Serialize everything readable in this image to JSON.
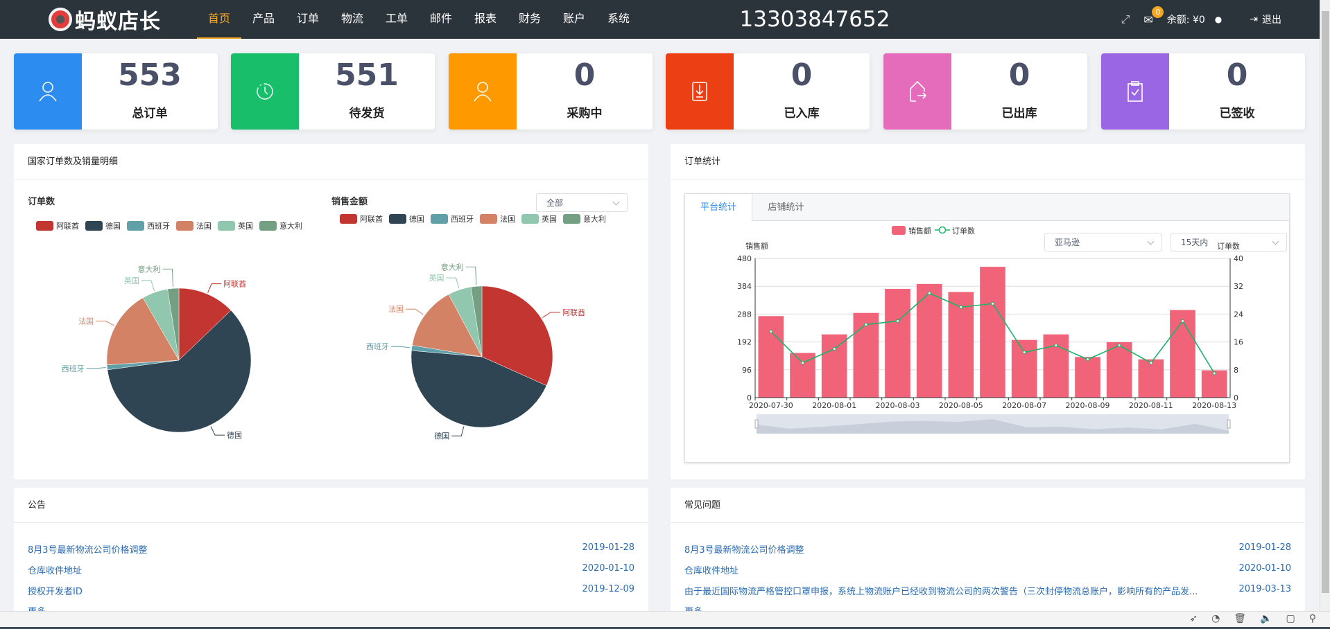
{
  "header": {
    "logo_text": "蚂蚁店长",
    "nav": [
      "首页",
      "产品",
      "订单",
      "物流",
      "工单",
      "邮件",
      "报表",
      "财务",
      "账户",
      "系统"
    ],
    "active_nav": 0,
    "phone": "13303847652",
    "mail_badge": "0",
    "balance": "余额: ¥0",
    "logout": "退出"
  },
  "stats": [
    {
      "value": "553",
      "label": "总订单",
      "color": "#2d8cf0",
      "icon": "user-icon"
    },
    {
      "value": "551",
      "label": "待发货",
      "color": "#19be6b",
      "icon": "clock-icon"
    },
    {
      "value": "0",
      "label": "采购中",
      "color": "#ff9900",
      "icon": "user-icon"
    },
    {
      "value": "0",
      "label": "已入库",
      "color": "#ed3f14",
      "icon": "download-icon"
    },
    {
      "value": "0",
      "label": "已出库",
      "color": "#e46cbb",
      "icon": "export-icon"
    },
    {
      "value": "0",
      "label": "已签收",
      "color": "#9a66e4",
      "icon": "clipboard-check-icon"
    }
  ],
  "country_panel": {
    "title": "国家订单数及销量明细",
    "filter": "全部"
  },
  "order_panel": {
    "title": "订单统计",
    "tabs": [
      "平台统计",
      "店铺统计"
    ],
    "active_tab": 0,
    "platform": "亚马逊",
    "range": "15天内"
  },
  "chart_data": [
    {
      "type": "pie",
      "title": "订单数",
      "categories": [
        "阿联酋",
        "德国",
        "西班牙",
        "法国",
        "英国",
        "意大利"
      ],
      "values": [
        71,
        332,
        6,
        98,
        32,
        14
      ],
      "colors": [
        "#c23531",
        "#2f4554",
        "#61a0a8",
        "#d48265",
        "#91c7ae",
        "#749f83"
      ],
      "legend": "top"
    },
    {
      "type": "pie",
      "title": "销售金额",
      "categories": [
        "阿联酋",
        "德国",
        "西班牙",
        "法国",
        "英国",
        "意大利"
      ],
      "values": [
        31.7,
        44.7,
        1.2,
        14.6,
        5.3,
        2.5
      ],
      "colors": [
        "#c23531",
        "#2f4554",
        "#61a0a8",
        "#d48265",
        "#91c7ae",
        "#749f83"
      ],
      "legend": "top"
    },
    {
      "type": "bar",
      "x": [
        "2020-07-30",
        "2020-07-31",
        "2020-08-01",
        "2020-08-02",
        "2020-08-03",
        "2020-08-04",
        "2020-08-05",
        "2020-08-06",
        "2020-08-07",
        "2020-08-08",
        "2020-08-09",
        "2020-08-10",
        "2020-08-11",
        "2020-08-12",
        "2020-08-13"
      ],
      "x_tick_labels": [
        "2020-07-30",
        "2020-08-01",
        "2020-08-03",
        "2020-08-05",
        "2020-08-07",
        "2020-08-09",
        "2020-08-11",
        "2020-08-13"
      ],
      "series": [
        {
          "name": "销售额",
          "type": "bar",
          "axis": "left",
          "color": "#f06378",
          "values": [
            281,
            154,
            218,
            292,
            375,
            392,
            364,
            451,
            199,
            218,
            140,
            191,
            132,
            302,
            94
          ]
        },
        {
          "name": "订单数",
          "type": "line",
          "axis": "right",
          "color": "#1bb56a",
          "values": [
            19,
            10,
            14,
            21,
            22,
            30,
            26,
            27,
            13,
            15,
            11,
            15,
            10,
            22,
            7
          ]
        }
      ],
      "ylabel": "销售额",
      "ylabel_right": "订单数",
      "ylim": [
        0,
        480
      ],
      "ylim_right": [
        0,
        40
      ],
      "yticks": [
        "0",
        "96",
        "192",
        "288",
        "384",
        "480"
      ],
      "yticks_right": [
        "0",
        "8",
        "16",
        "24",
        "32",
        "40"
      ],
      "grid": true,
      "legend": "top-right",
      "datazoom": true
    }
  ],
  "notices": {
    "title": "公告",
    "items": [
      {
        "text": "8月3号最新物流公司价格调整",
        "date": "2019-01-28"
      },
      {
        "text": "仓库收件地址",
        "date": "2020-01-10"
      },
      {
        "text": "授权开发者ID",
        "date": "2019-12-09"
      }
    ],
    "more": "更多"
  },
  "faq": {
    "title": "常见问题",
    "items": [
      {
        "text": "8月3号最新物流公司价格调整",
        "date": "2019-01-28"
      },
      {
        "text": "仓库收件地址",
        "date": "2020-01-10"
      },
      {
        "text": "由于最近国际物流严格管控口罩申报，系统上物流账户已经收到物流公司的两次警告（三次封停物流总账户，影响所有的产品发...",
        "date": "2019-03-13"
      }
    ],
    "more": "更多"
  }
}
